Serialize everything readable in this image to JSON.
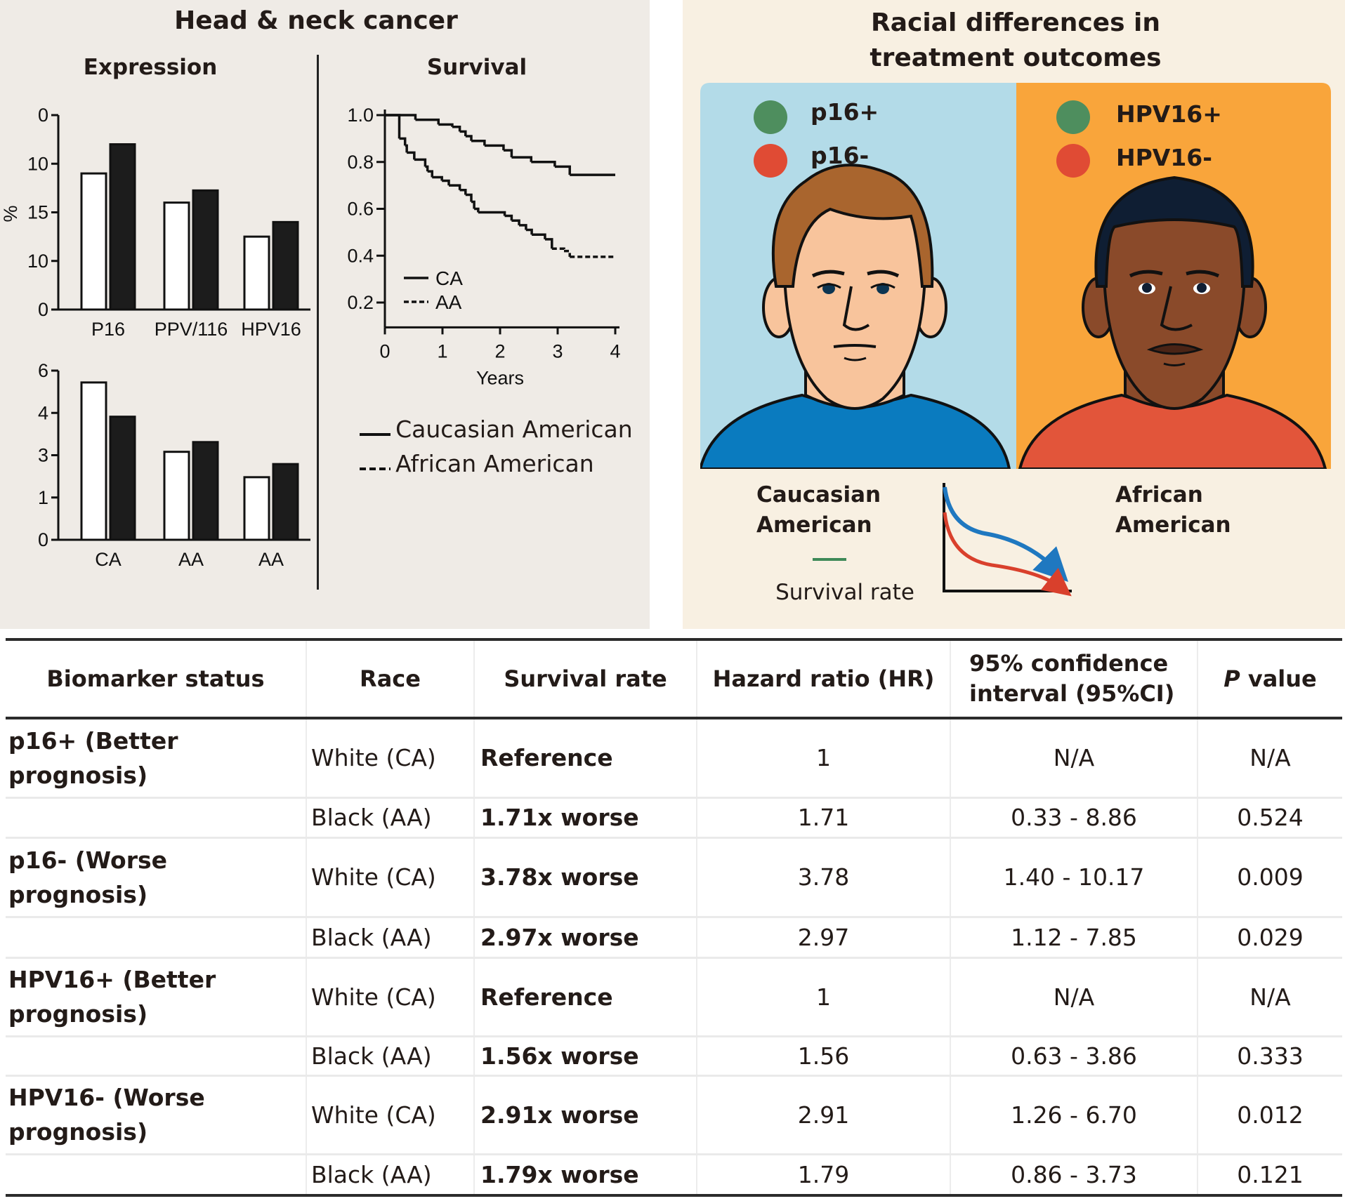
{
  "left_panel": {
    "title": "Head & neck cancer",
    "expression_title": "Expression",
    "survival_title": "Survival",
    "legend": [
      {
        "label": "Caucasian American",
        "style": "solid"
      },
      {
        "label": "African American",
        "style": "dashed"
      }
    ]
  },
  "right_panel": {
    "title_line1": "Racial differences in",
    "title_line2": "treatment outcomes",
    "left_markers": [
      {
        "label": "p16+",
        "color": "#4e8e5e"
      },
      {
        "label": "p16-",
        "color": "#e04b34"
      }
    ],
    "right_markers": [
      {
        "label": "HPV16+",
        "color": "#4e8e5e"
      },
      {
        "label": "HPV16-",
        "color": "#e04b34"
      }
    ],
    "left_caption_line1": "Caucasian",
    "left_caption_line2": "American",
    "right_caption_line1": "African",
    "right_caption_line2": "American",
    "survival_rate_label": "Survival rate",
    "colors": {
      "blue_panel": "#b3dbe8",
      "orange_panel": "#f9a53b",
      "ca_shirt": "#0a7bbf",
      "aa_shirt": "#e2553a",
      "ca_skin": "#f8c49c",
      "aa_skin": "#8a4a2a",
      "ca_hair": "#a9652e",
      "aa_hair": "#0f1e33",
      "mini_curve_ca": "#1f78c0",
      "mini_curve_aa": "#d9402c"
    }
  },
  "chart_data": [
    {
      "type": "bar",
      "title": "Expression",
      "ylabel": "%",
      "categories": [
        "P16",
        "PPV/116",
        "HPV16"
      ],
      "y_tick_labels_bottom_to_top": [
        "0",
        "10",
        "15",
        "10",
        "0"
      ],
      "value_scale_note": "values expressed in tick-index units (0 = bottom tick, 4 = top tick) because axis labels are non-monotonic",
      "series": [
        {
          "name": "Caucasian American",
          "fill": "white",
          "values": [
            2.8,
            2.2,
            1.5
          ]
        },
        {
          "name": "African American",
          "fill": "black",
          "values": [
            3.4,
            2.45,
            1.8
          ]
        }
      ],
      "ylim": [
        0,
        4
      ]
    },
    {
      "type": "bar",
      "title": "",
      "ylabel": "",
      "categories": [
        "CA",
        "AA",
        "AA"
      ],
      "y_tick_labels_bottom_to_top": [
        "0",
        "1",
        "3",
        "4",
        "6"
      ],
      "value_scale_note": "values expressed in tick-index units (0 = bottom tick, 4 = top tick)",
      "series": [
        {
          "name": "Caucasian American",
          "fill": "white",
          "values": [
            3.72,
            2.08,
            1.48
          ]
        },
        {
          "name": "African American",
          "fill": "black",
          "values": [
            2.91,
            2.31,
            1.79
          ]
        }
      ],
      "ylim": [
        0,
        4
      ]
    },
    {
      "type": "line",
      "title": "Survival",
      "xlabel": "Years",
      "ylabel": "",
      "x_ticks": [
        0,
        1,
        2,
        3,
        4
      ],
      "y_ticks": [
        0.2,
        0.4,
        0.6,
        0.8,
        1.0
      ],
      "xlim": [
        0,
        4
      ],
      "ylim": [
        0.1,
        1.0
      ],
      "legend": [
        {
          "label": "CA",
          "style": "solid"
        },
        {
          "label": "AA",
          "style": "dashed"
        }
      ],
      "legend_position": "bottom-left",
      "series": [
        {
          "name": "CA",
          "style": "solid",
          "step_points": [
            [
              0,
              1.0
            ],
            [
              0.53,
              0.98
            ],
            [
              0.93,
              0.96
            ],
            [
              1.17,
              0.95
            ],
            [
              1.3,
              0.93
            ],
            [
              1.4,
              0.91
            ],
            [
              1.5,
              0.89
            ],
            [
              1.73,
              0.87
            ],
            [
              2.06,
              0.85
            ],
            [
              2.2,
              0.82
            ],
            [
              2.54,
              0.8
            ],
            [
              2.95,
              0.78
            ],
            [
              3.21,
              0.745
            ],
            [
              4.0,
              0.745
            ]
          ]
        },
        {
          "name": "AA",
          "style": "solid-then-dashed",
          "dash_from": 2.9,
          "step_points": [
            [
              0,
              1.0
            ],
            [
              0.25,
              0.9
            ],
            [
              0.35,
              0.87
            ],
            [
              0.38,
              0.84
            ],
            [
              0.51,
              0.81
            ],
            [
              0.7,
              0.78
            ],
            [
              0.74,
              0.76
            ],
            [
              0.82,
              0.735
            ],
            [
              0.99,
              0.72
            ],
            [
              1.11,
              0.7
            ],
            [
              1.3,
              0.68
            ],
            [
              1.4,
              0.66
            ],
            [
              1.5,
              0.63
            ],
            [
              1.55,
              0.6
            ],
            [
              1.62,
              0.585
            ],
            [
              2.08,
              0.57
            ],
            [
              2.2,
              0.55
            ],
            [
              2.33,
              0.53
            ],
            [
              2.45,
              0.51
            ],
            [
              2.55,
              0.49
            ],
            [
              2.78,
              0.47
            ],
            [
              2.9,
              0.43
            ],
            [
              3.11,
              0.42
            ],
            [
              3.21,
              0.395
            ],
            [
              4.0,
              0.395
            ]
          ]
        }
      ]
    }
  ],
  "table": {
    "headers": {
      "biomarker": "Biomarker status",
      "race": "Race",
      "survival": "Survival rate",
      "hr": "Hazard ratio (HR)",
      "ci_line1": "95% confidence",
      "ci_line2": "interval (95%CI)",
      "p_italic": "P",
      "p_rest": " value"
    },
    "rows": [
      {
        "biomarker": "p16+ (Better prognosis)",
        "race": "White (CA)",
        "survival": "Reference",
        "hr": "1",
        "ci": "N/A",
        "p": "N/A"
      },
      {
        "biomarker": "",
        "race": "Black (AA)",
        "survival": "1.71x worse",
        "hr": "1.71",
        "ci": "0.33 - 8.86",
        "p": "0.524"
      },
      {
        "biomarker": "p16- (Worse prognosis)",
        "race": "White (CA)",
        "survival": "3.78x worse",
        "hr": "3.78",
        "ci": "1.40 - 10.17",
        "p": "0.009"
      },
      {
        "biomarker": "",
        "race": "Black (AA)",
        "survival": "2.97x worse",
        "hr": "2.97",
        "ci": "1.12 - 7.85",
        "p": "0.029"
      },
      {
        "biomarker": "HPV16+ (Better prognosis)",
        "race": "White (CA)",
        "survival": "Reference",
        "hr": "1",
        "ci": "N/A",
        "p": "N/A"
      },
      {
        "biomarker": "",
        "race": "Black (AA)",
        "survival": "1.56x worse",
        "hr": "1.56",
        "ci": "0.63 - 3.86",
        "p": "0.333"
      },
      {
        "biomarker": "HPV16- (Worse prognosis)",
        "race": "White (CA)",
        "survival": "2.91x worse",
        "hr": "2.91",
        "ci": "1.26 - 6.70",
        "p": "0.012"
      },
      {
        "biomarker": "",
        "race": "Black (AA)",
        "survival": "1.79x worse",
        "hr": "1.79",
        "ci": "0.86 - 3.73",
        "p": "0.121"
      }
    ]
  }
}
